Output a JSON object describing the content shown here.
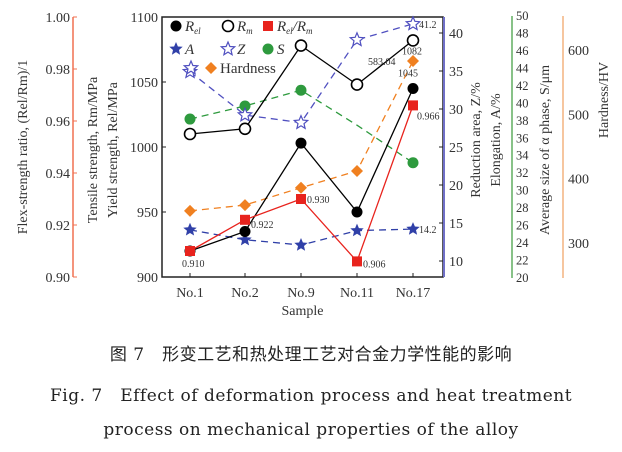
{
  "chart_data": {
    "type": "line",
    "xlabel": "Sample",
    "categories": [
      "No.1",
      "No.2",
      "No.9",
      "No.11",
      "No.17"
    ],
    "axes": {
      "ratio": {
        "label": "Flex-strength ratio, (Rel/Rm)/1",
        "range": [
          0.9,
          1.0
        ],
        "ticks": [
          "0.90",
          "0.92",
          "0.94",
          "0.96",
          "0.98",
          "1.00"
        ],
        "color": "#f07050"
      },
      "strength": {
        "labels": [
          "Tensile strength, Rm/MPa",
          "Yield strength, Rel/MPa"
        ],
        "range": [
          900,
          1100
        ],
        "ticks": [
          "900",
          "950",
          "1000",
          "1050",
          "1100"
        ]
      },
      "percent": {
        "labels": [
          "Reduction area, Z/%",
          "Elongation, A/%"
        ],
        "range": [
          10,
          42
        ],
        "ticks": [
          "10",
          "15",
          "20",
          "25",
          "30",
          "35",
          "40"
        ],
        "color": "#7070c8"
      },
      "size": {
        "label": "Average size of α phase, S/μm",
        "range": [
          20,
          50
        ],
        "ticks": [
          "20",
          "22",
          "24",
          "26",
          "28",
          "30",
          "32",
          "34",
          "36",
          "38",
          "40",
          "42",
          "44",
          "46",
          "48",
          "50"
        ],
        "color": "#3a9a3a"
      },
      "hardness": {
        "label": "Hardness/HV",
        "range": [
          225,
          525
        ],
        "ticks": [
          "300",
          "400",
          "500",
          "600"
        ],
        "color": "#f0a060"
      }
    },
    "series": [
      {
        "name": "Rel",
        "axis": "strength",
        "values": [
          920,
          935,
          1003,
          950,
          1045
        ],
        "color": "#000000",
        "marker": "filled-circle",
        "line": "solid",
        "labels": [
          "",
          "",
          "",
          "",
          "1045"
        ]
      },
      {
        "name": "Rm",
        "axis": "strength",
        "values": [
          1010,
          1014,
          1078,
          1048,
          1082
        ],
        "color": "#000000",
        "marker": "open-circle",
        "line": "solid",
        "labels": [
          "",
          "",
          "",
          "",
          "1082"
        ]
      },
      {
        "name": "Rel/Rm",
        "axis": "ratio",
        "values": [
          0.91,
          0.922,
          0.93,
          0.906,
          0.966
        ],
        "color": "#e8231d",
        "marker": "filled-square",
        "line": "solid",
        "labels": [
          "0.910",
          "0.922",
          "0.930",
          "0.906",
          "0.966"
        ]
      },
      {
        "name": "A",
        "axis": "percent",
        "values": [
          14.1,
          12.8,
          12.1,
          14.0,
          14.2
        ],
        "color": "#3040a8",
        "marker": "filled-star",
        "line": "dashed",
        "labels": [
          "",
          "",
          "",
          "",
          "14.2"
        ]
      },
      {
        "name": "Z",
        "axis": "percent",
        "values": [
          34.9,
          29.2,
          28.2,
          39.1,
          41.2
        ],
        "color": "#5050c0",
        "marker": "open-star",
        "line": "dashed",
        "labels": [
          "",
          "",
          "",
          "",
          "41.2"
        ]
      },
      {
        "name": "S",
        "axis": "size",
        "values": [
          38.2,
          39.7,
          41.5,
          37.5,
          33.2
        ],
        "color": "#2e9a3e",
        "marker": "filled-hexagon",
        "line": "dashed",
        "labels": [
          "",
          "",
          "",
          "",
          ""
        ]
      },
      {
        "name": "Hardness",
        "axis": "hardness",
        "values": [
          350,
          359,
          386,
          412,
          583.04
        ],
        "color": "#f08020",
        "marker": "filled-diamond",
        "line": "dashed",
        "labels": [
          "",
          "",
          "",
          "",
          "583.04"
        ]
      }
    ],
    "legend_placement": "top-left",
    "grid": false
  },
  "caption": {
    "cn": "图 7　形变工艺和热处理工艺对合金力学性能的影响",
    "en_line1": "Fig. 7　Effect of deformation process and heat treatment",
    "en_line2": "process on mechanical properties of the alloy"
  }
}
